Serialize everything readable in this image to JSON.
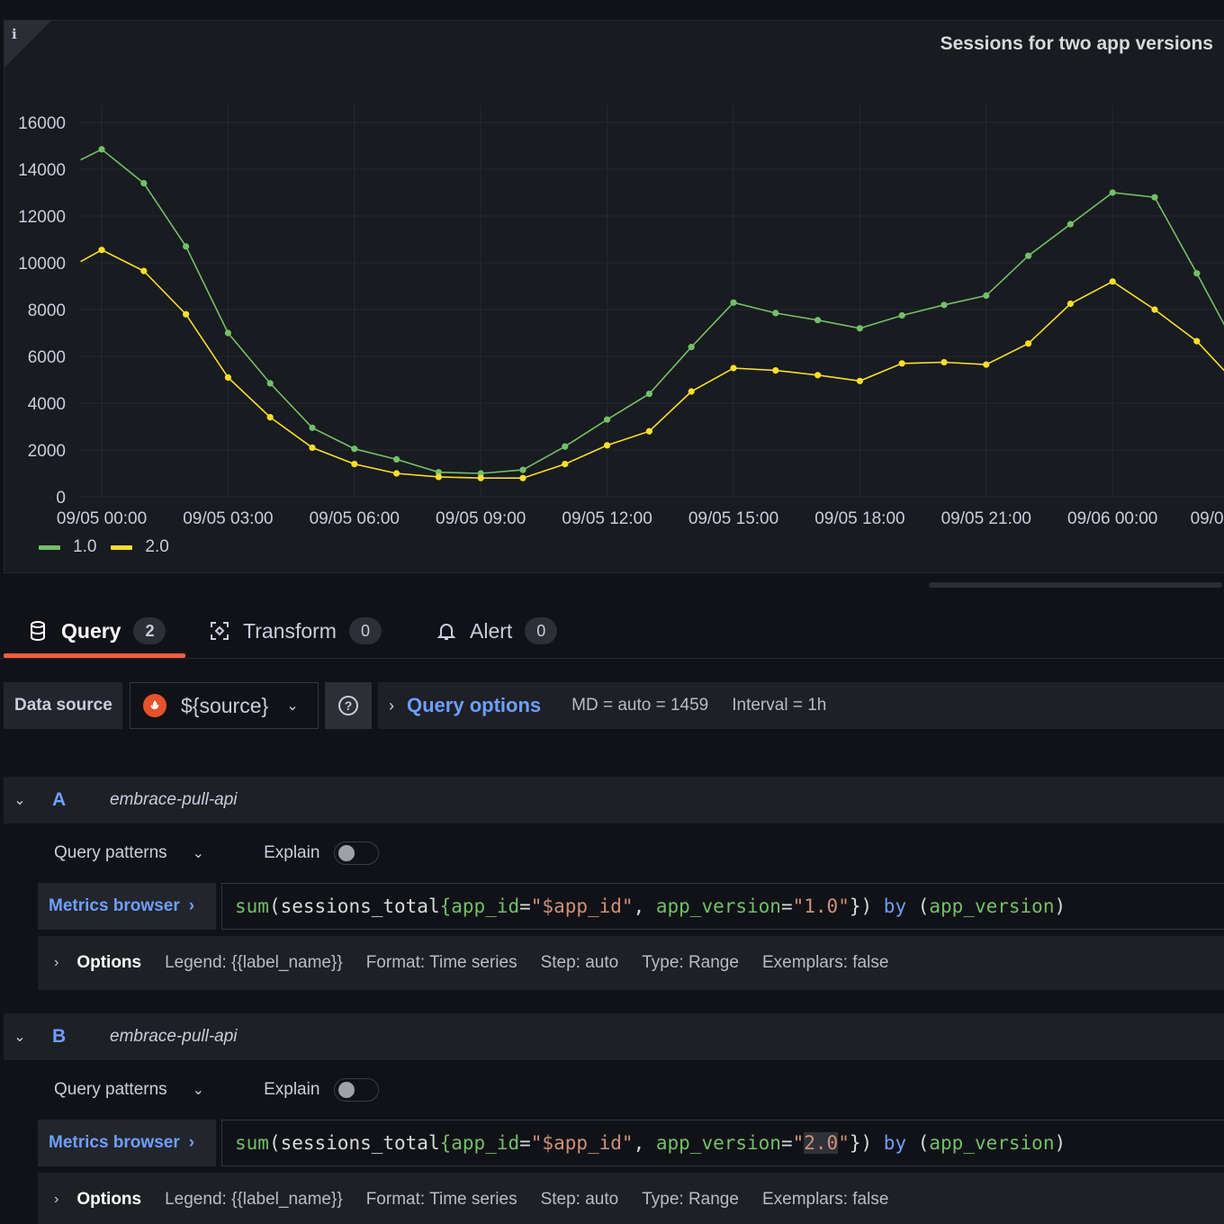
{
  "panel": {
    "title": "Sessions for two app versions",
    "info_icon": "info-icon"
  },
  "chart_data": {
    "type": "line",
    "title": "Sessions for two app versions",
    "xlabel": "",
    "ylabel": "",
    "ylim": [
      0,
      16000
    ],
    "yticks": [
      "0",
      "2000",
      "4000",
      "6000",
      "8000",
      "10000",
      "12000",
      "14000",
      "16000"
    ],
    "x_tick_labels": [
      "09/05 00:00",
      "09/05 03:00",
      "09/05 06:00",
      "09/05 09:00",
      "09/05 12:00",
      "09/05 15:00",
      "09/05 18:00",
      "09/05 21:00",
      "09/06 00:00",
      "09/0"
    ],
    "x_hours": [
      -0.5,
      0,
      1,
      2,
      3,
      4,
      5,
      6,
      7,
      8,
      9,
      10,
      11,
      12,
      13,
      14,
      15,
      16,
      17,
      18,
      19,
      20,
      21,
      22,
      23,
      24,
      25,
      26,
      26.7
    ],
    "x_range_hours": [
      -0.5,
      26.7
    ],
    "grid": true,
    "legend_placement": "bottom-left",
    "series": [
      {
        "name": "1.0",
        "color": "#73bf69",
        "values": [
          14400,
          14850,
          13400,
          10700,
          7000,
          4850,
          2950,
          2050,
          1600,
          1050,
          1000,
          1150,
          2150,
          3300,
          4400,
          6400,
          8300,
          7850,
          7550,
          7200,
          7750,
          8200,
          8600,
          10300,
          11650,
          13000,
          12800,
          9550,
          7200
        ]
      },
      {
        "name": "2.0",
        "color": "#fade2a",
        "values": [
          10050,
          10550,
          9650,
          7800,
          5100,
          3400,
          2100,
          1400,
          1000,
          850,
          800,
          800,
          1400,
          2200,
          2800,
          4500,
          5500,
          5400,
          5200,
          4950,
          5700,
          5750,
          5650,
          6550,
          8250,
          9200,
          8000,
          6650,
          5300
        ]
      }
    ]
  },
  "tabs": [
    {
      "label": "Query",
      "count": "2",
      "icon": "database-icon"
    },
    {
      "label": "Transform",
      "count": "0",
      "icon": "transform-icon"
    },
    {
      "label": "Alert",
      "count": "0",
      "icon": "bell-icon"
    }
  ],
  "datasource": {
    "label": "Data source",
    "value": "${source}",
    "icon": "prometheus-icon"
  },
  "query_options": {
    "label": "Query options",
    "md": "MD = auto = 1459",
    "interval": "Interval = 1h"
  },
  "queries": [
    {
      "ref": "A",
      "datasource": "embrace-pull-api",
      "patterns_label": "Query patterns",
      "explain_label": "Explain",
      "metrics_browser": "Metrics browser",
      "code": {
        "fn": "sum",
        "open": "(",
        "metric": "sessions_total",
        "brace_open": "{",
        "k1": "app_id",
        "eq1": "=",
        "v1": "\"$app_id\"",
        "comma": ", ",
        "k2": "app_version",
        "eq2": "=",
        "q_open": "\"",
        "v2": "1.0",
        "q_close": "\"",
        "brace_close": "})",
        "by": " by ",
        "g_open": "(",
        "g": "app_version",
        "g_close": ")"
      },
      "options": {
        "label": "Options",
        "legend": "Legend: {{label_name}}",
        "format": "Format: Time series",
        "step": "Step: auto",
        "type": "Type: Range",
        "exemplars": "Exemplars: false"
      }
    },
    {
      "ref": "B",
      "datasource": "embrace-pull-api",
      "patterns_label": "Query patterns",
      "explain_label": "Explain",
      "metrics_browser": "Metrics browser",
      "code": {
        "fn": "sum",
        "open": "(",
        "metric": "sessions_total",
        "brace_open": "{",
        "k1": "app_id",
        "eq1": "=",
        "v1": "\"$app_id\"",
        "comma": ", ",
        "k2": "app_version",
        "eq2": "=",
        "q_open": "\"",
        "v2": "2.0",
        "q_close": "\"",
        "brace_close": "})",
        "by": " by ",
        "g_open": "(",
        "g": "app_version",
        "g_close": ")"
      },
      "options": {
        "label": "Options",
        "legend": "Legend: {{label_name}}",
        "format": "Format: Time series",
        "step": "Step: auto",
        "type": "Type: Range",
        "exemplars": "Exemplars: false"
      }
    }
  ]
}
